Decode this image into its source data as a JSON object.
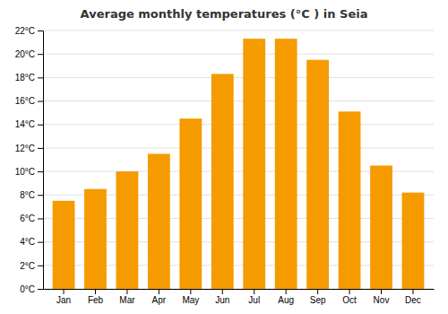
{
  "chart_data": {
    "type": "bar",
    "title": "Average monthly temperatures (°C ) in Seia",
    "categories": [
      "Jan",
      "Feb",
      "Mar",
      "Apr",
      "May",
      "Jun",
      "Jul",
      "Aug",
      "Sep",
      "Oct",
      "Nov",
      "Dec"
    ],
    "values": [
      7.5,
      8.5,
      10.0,
      11.5,
      14.5,
      18.3,
      21.3,
      21.3,
      19.5,
      15.1,
      10.5,
      8.2
    ],
    "color": "#F59B00",
    "ylim": [
      0,
      22
    ],
    "yticks": [
      {
        "value": 0,
        "label": "0°C"
      },
      {
        "value": 2,
        "label": "2°C"
      },
      {
        "value": 4,
        "label": "4°C"
      },
      {
        "value": 6,
        "label": "6°C"
      },
      {
        "value": 8,
        "label": "8°C"
      },
      {
        "value": 10,
        "label": "10°C"
      },
      {
        "value": 12,
        "label": "12°C"
      },
      {
        "value": 14,
        "label": "14°C"
      },
      {
        "value": 16,
        "label": "16°C"
      },
      {
        "value": 18,
        "label": "18°C"
      },
      {
        "value": 20,
        "label": "20°C"
      },
      {
        "value": 22,
        "label": "22°C"
      }
    ],
    "grid": true
  }
}
